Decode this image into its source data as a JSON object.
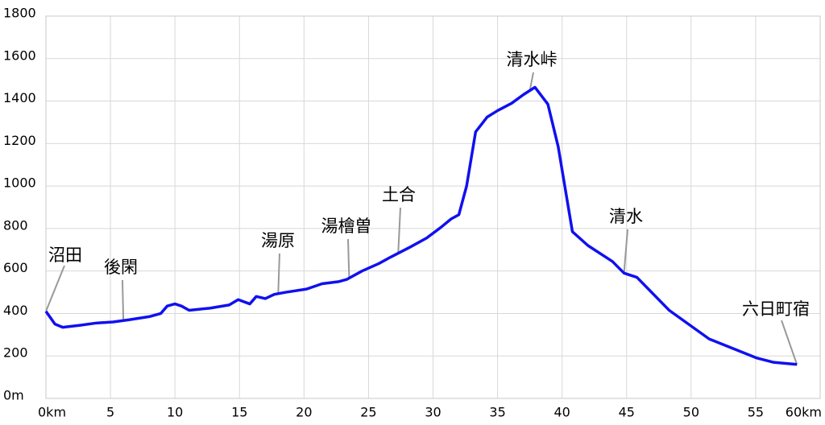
{
  "chart_data": {
    "type": "line",
    "color": "#1010f0",
    "grid": true,
    "x": [
      0,
      0.7,
      1.3,
      2.7,
      3.9,
      5.2,
      6.4,
      8,
      8.9,
      9.4,
      10,
      10.5,
      11.1,
      12.7,
      14.2,
      14.9,
      15.8,
      16.3,
      17.0,
      17.7,
      18.6,
      20.2,
      21.4,
      22.7,
      23.3,
      24.5,
      25.8,
      26.7,
      28.3,
      29.5,
      30.6,
      31.4,
      32,
      32.6,
      33.3,
      34.2,
      35,
      36.1,
      37,
      37.9,
      38.9,
      39.7,
      40.8,
      42,
      43.9,
      44.8,
      45.8,
      48.3,
      51.4,
      55.1,
      56.4,
      58.2
    ],
    "values": [
      410,
      350,
      335,
      345,
      355,
      360,
      370,
      385,
      400,
      435,
      445,
      435,
      415,
      425,
      440,
      465,
      445,
      480,
      470,
      490,
      500,
      515,
      540,
      550,
      560,
      600,
      635,
      665,
      715,
      755,
      805,
      845,
      865,
      1000,
      1255,
      1325,
      1355,
      1390,
      1430,
      1465,
      1385,
      1185,
      785,
      720,
      645,
      590,
      570,
      415,
      280,
      190,
      170,
      160
    ],
    "xlim": [
      0,
      60
    ],
    "xticks": [
      {
        "value": 0,
        "label": "0km"
      },
      5,
      10,
      15,
      20,
      25,
      30,
      35,
      40,
      45,
      50,
      55,
      {
        "value": 60,
        "label": "60km"
      }
    ],
    "ylim": [
      0,
      1800
    ],
    "yticks": [
      {
        "value": 0,
        "label": "0m"
      },
      200,
      400,
      600,
      800,
      1000,
      1200,
      1400,
      1600,
      1800
    ],
    "annotations": [
      {
        "text": "沼田",
        "x": 0
      },
      {
        "text": "後閑",
        "x": 6
      },
      {
        "text": "湯原",
        "x": 18
      },
      {
        "text": "湯檜曽",
        "x": 23.5
      },
      {
        "text": "土合",
        "x": 27.3
      },
      {
        "text": "清水峠",
        "x": 37.5
      },
      {
        "text": "清水",
        "x": 44.8
      },
      {
        "text": "六日町宿",
        "x": 58.2
      }
    ]
  }
}
